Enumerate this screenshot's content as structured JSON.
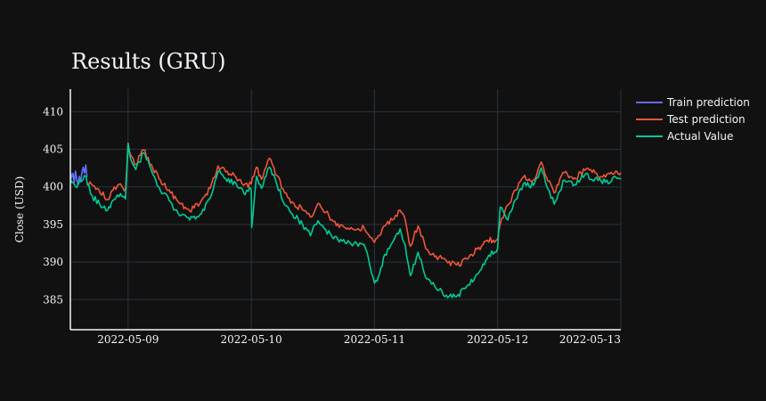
{
  "chart_data": {
    "type": "line",
    "title": "Results (GRU)",
    "xlabel": "",
    "ylabel": "Close (USD)",
    "ylim": [
      381,
      413
    ],
    "xlim": [
      "2022-05-08 12:45",
      "2022-05-13 00:00"
    ],
    "x_ticks": [
      "2022-05-09",
      "2022-05-10",
      "2022-05-11",
      "2022-05-12",
      "2022-05-13"
    ],
    "y_ticks": [
      385,
      390,
      395,
      400,
      405,
      410
    ],
    "grid": true,
    "legend_position": "top-right",
    "series": [
      {
        "name": "Train prediction",
        "color": "#636efa",
        "x": [
          "2022-05-08 12:45",
          "2022-05-08 13:00",
          "2022-05-08 13:15",
          "2022-05-08 13:30",
          "2022-05-08 13:45",
          "2022-05-08 14:00",
          "2022-05-08 14:15",
          "2022-05-08 14:30",
          "2022-05-08 14:45",
          "2022-05-08 15:00",
          "2022-05-08 15:15",
          "2022-05-08 15:30",
          "2022-05-08 15:45",
          "2022-05-08 16:00"
        ],
        "y": [
          402.0,
          401.2,
          401.8,
          400.6,
          402.1,
          400.9,
          400.3,
          401.4,
          400.7,
          401.9,
          402.6,
          401.8,
          402.9,
          401.3
        ]
      },
      {
        "name": "Test prediction",
        "color": "#ef553b",
        "x": [
          "2022-05-08 16:00",
          "2022-05-08 18:00",
          "2022-05-08 20:00",
          "2022-05-08 21:00",
          "2022-05-08 22:30",
          "2022-05-08 23:30",
          "2022-05-09 00:00",
          "2022-05-09 00:30",
          "2022-05-09 01:30",
          "2022-05-09 03:00",
          "2022-05-09 04:30",
          "2022-05-09 06:00",
          "2022-05-09 08:00",
          "2022-05-09 10:00",
          "2022-05-09 12:00",
          "2022-05-09 14:00",
          "2022-05-09 16:00",
          "2022-05-09 17:30",
          "2022-05-09 19:00",
          "2022-05-09 21:00",
          "2022-05-09 22:30",
          "2022-05-10 00:00",
          "2022-05-10 01:00",
          "2022-05-10 02:00",
          "2022-05-10 03:30",
          "2022-05-10 05:00",
          "2022-05-10 06:30",
          "2022-05-10 08:00",
          "2022-05-10 10:00",
          "2022-05-10 11:30",
          "2022-05-10 13:00",
          "2022-05-10 14:30",
          "2022-05-10 16:00",
          "2022-05-10 18:00",
          "2022-05-10 20:00",
          "2022-05-10 22:00",
          "2022-05-11 00:00",
          "2022-05-11 01:00",
          "2022-05-11 02:00",
          "2022-05-11 03:30",
          "2022-05-11 05:00",
          "2022-05-11 06:00",
          "2022-05-11 07:00",
          "2022-05-11 08:30",
          "2022-05-11 10:00",
          "2022-05-11 12:00",
          "2022-05-11 14:00",
          "2022-05-11 16:00",
          "2022-05-11 18:00",
          "2022-05-11 20:00",
          "2022-05-11 22:00",
          "2022-05-12 00:00",
          "2022-05-12 00:30",
          "2022-05-12 02:00",
          "2022-05-12 03:30",
          "2022-05-12 05:00",
          "2022-05-12 07:00",
          "2022-05-12 08:30",
          "2022-05-12 09:30",
          "2022-05-12 11:00",
          "2022-05-12 13:00",
          "2022-05-12 15:00",
          "2022-05-12 17:00",
          "2022-05-12 19:00",
          "2022-05-12 21:00",
          "2022-05-12 23:00",
          "2022-05-13 00:00"
        ],
        "y": [
          400.5,
          399.8,
          398.3,
          399.5,
          400.4,
          399.7,
          405.8,
          404.2,
          403.0,
          404.9,
          403.0,
          401.1,
          399.6,
          397.8,
          396.8,
          397.8,
          399.8,
          402.8,
          402.0,
          401.3,
          400.2,
          400.4,
          402.6,
          401.0,
          403.8,
          401.5,
          399.2,
          398.0,
          396.9,
          396.0,
          397.8,
          396.6,
          395.4,
          394.7,
          394.3,
          394.5,
          392.6,
          393.5,
          394.8,
          395.6,
          396.9,
          395.6,
          392.1,
          394.8,
          391.8,
          390.8,
          390.2,
          389.6,
          390.4,
          391.7,
          392.9,
          393.0,
          395.0,
          397.6,
          399.6,
          401.3,
          400.9,
          403.3,
          401.3,
          399.2,
          401.9,
          401.2,
          402.2,
          401.9,
          401.3,
          402.1,
          401.9
        ]
      },
      {
        "name": "Actual Value",
        "color": "#00cc96",
        "x": [
          "2022-05-08 12:45",
          "2022-05-08 14:00",
          "2022-05-08 15:30",
          "2022-05-08 17:00",
          "2022-05-08 18:30",
          "2022-05-08 20:00",
          "2022-05-08 21:00",
          "2022-05-08 22:30",
          "2022-05-08 23:30",
          "2022-05-09 00:00",
          "2022-05-09 00:30",
          "2022-05-09 01:30",
          "2022-05-09 03:00",
          "2022-05-09 04:30",
          "2022-05-09 06:00",
          "2022-05-09 08:00",
          "2022-05-09 10:00",
          "2022-05-09 12:00",
          "2022-05-09 14:00",
          "2022-05-09 16:00",
          "2022-05-09 17:30",
          "2022-05-09 19:00",
          "2022-05-09 21:00",
          "2022-05-09 22:30",
          "2022-05-10 00:00",
          "2022-05-10 00:05",
          "2022-05-10 01:00",
          "2022-05-10 02:00",
          "2022-05-10 03:30",
          "2022-05-10 05:00",
          "2022-05-10 06:30",
          "2022-05-10 08:00",
          "2022-05-10 10:00",
          "2022-05-10 11:30",
          "2022-05-10 13:00",
          "2022-05-10 14:30",
          "2022-05-10 16:00",
          "2022-05-10 18:00",
          "2022-05-10 20:00",
          "2022-05-10 22:00",
          "2022-05-11 00:00",
          "2022-05-11 00:45",
          "2022-05-11 02:00",
          "2022-05-11 03:30",
          "2022-05-11 05:00",
          "2022-05-11 06:00",
          "2022-05-11 07:00",
          "2022-05-11 08:30",
          "2022-05-11 10:00",
          "2022-05-11 12:00",
          "2022-05-11 14:00",
          "2022-05-11 16:00",
          "2022-05-11 18:00",
          "2022-05-11 20:00",
          "2022-05-11 22:00",
          "2022-05-12 00:00",
          "2022-05-12 00:30",
          "2022-05-12 02:00",
          "2022-05-12 03:30",
          "2022-05-12 05:00",
          "2022-05-12 07:00",
          "2022-05-12 08:30",
          "2022-05-12 09:30",
          "2022-05-12 11:00",
          "2022-05-12 13:00",
          "2022-05-12 15:00",
          "2022-05-12 17:00",
          "2022-05-12 19:00",
          "2022-05-12 21:00",
          "2022-05-12 23:00",
          "2022-05-13 00:00"
        ],
        "y": [
          401.2,
          399.9,
          401.5,
          398.8,
          397.6,
          396.9,
          398.2,
          399.1,
          398.4,
          405.8,
          403.7,
          402.3,
          404.5,
          402.3,
          400.0,
          398.2,
          396.2,
          395.6,
          396.3,
          398.5,
          402.0,
          401.1,
          400.5,
          399.2,
          399.6,
          394.6,
          401.4,
          399.8,
          402.6,
          400.3,
          397.6,
          396.4,
          395.0,
          393.5,
          395.5,
          394.3,
          393.1,
          393.0,
          392.5,
          392.3,
          387.2,
          388.0,
          391.0,
          392.6,
          394.4,
          392.3,
          388.2,
          391.3,
          387.9,
          386.5,
          385.6,
          385.4,
          386.8,
          388.4,
          390.5,
          391.8,
          397.3,
          395.6,
          398.3,
          400.4,
          400.2,
          402.5,
          400.2,
          397.7,
          400.9,
          400.3,
          401.6,
          401.1,
          400.6,
          401.3,
          401.0
        ]
      }
    ]
  }
}
